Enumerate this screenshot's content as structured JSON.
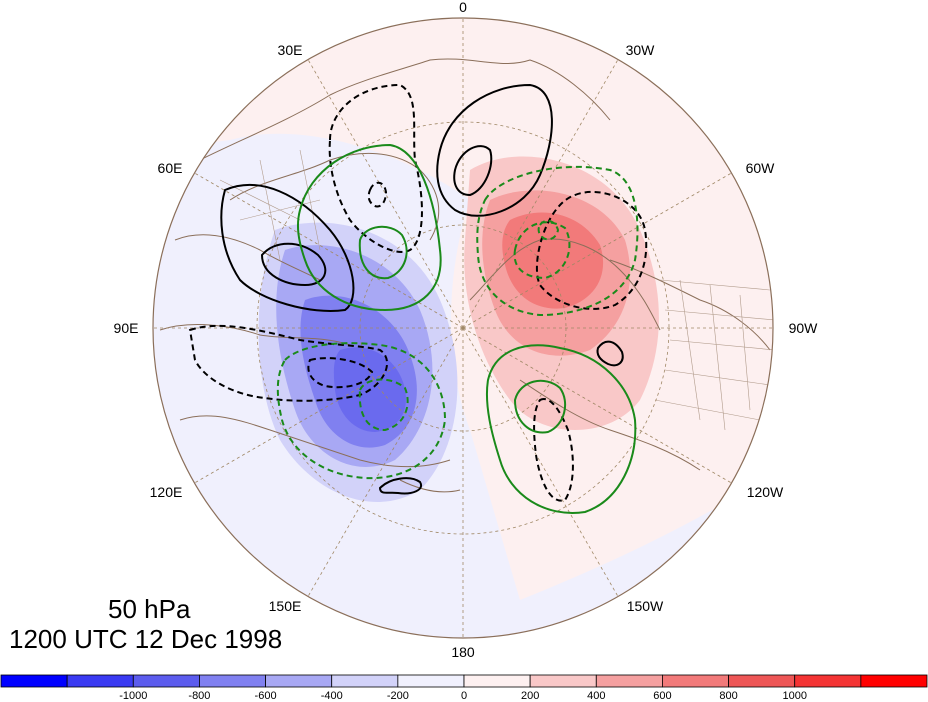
{
  "title": {
    "level": "50 hPa",
    "time": "1200 UTC 12 Dec 1998"
  },
  "longitude_labels": [
    "0",
    "30W",
    "60W",
    "90W",
    "120W",
    "150W",
    "180",
    "150E",
    "120E",
    "90E",
    "60E",
    "30E"
  ],
  "colorbar": {
    "colors": [
      "#0000ff",
      "#3a3af2",
      "#5c5cee",
      "#8080f0",
      "#a8a8f4",
      "#d2d2f9",
      "#f0f0fd",
      "#fdf0f0",
      "#f9c8c8",
      "#f5a0a0",
      "#f27a7a",
      "#ee5656",
      "#f43434",
      "#ff0000"
    ],
    "tick_labels": [
      "-1000",
      "-800",
      "-600",
      "-400",
      "-200",
      "0",
      "200",
      "400",
      "600",
      "800",
      "1000"
    ]
  },
  "legend_colors": {
    "black_contour": "#000000",
    "green_contour": "#1a8a1a",
    "map_outline": "#8b6f5a"
  }
}
